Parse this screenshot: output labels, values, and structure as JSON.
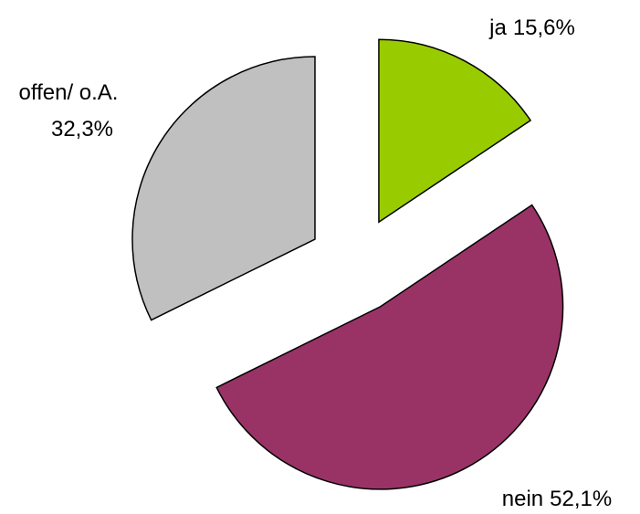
{
  "chart_data": {
    "type": "pie",
    "categories": [
      "ja",
      "nein",
      "offen/ o.A."
    ],
    "values": [
      15.6,
      52.1,
      32.3
    ],
    "value_labels": [
      "15,6%",
      "52,1%",
      "32,3%"
    ],
    "colors": [
      "#99cc00",
      "#993366",
      "#c0c0c0"
    ]
  }
}
